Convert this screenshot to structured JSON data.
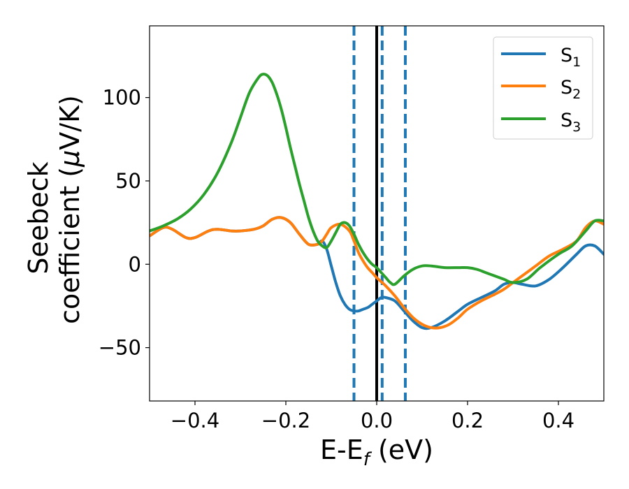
{
  "chart_data": {
    "type": "line",
    "xlabel": {
      "main": "E-E",
      "sub": "f",
      "after": " (eV)"
    },
    "ylabel": {
      "line1": "Seebeck",
      "line2_prefix": "coefficient  (",
      "mu": "μ",
      "line2_suffix": "V/K)"
    },
    "xlim": [
      -0.5,
      0.5
    ],
    "ylim": [
      -82,
      143
    ],
    "xticks": [
      -0.4,
      -0.2,
      0.0,
      0.2,
      0.4
    ],
    "xtick_labels": [
      "−0.4",
      "−0.2",
      "0.0",
      "0.2",
      "0.4"
    ],
    "yticks": [
      -50,
      0,
      50,
      100
    ],
    "ytick_labels": [
      "−50",
      "0",
      "50",
      "100"
    ],
    "grid": false,
    "legend": {
      "position": "top-right"
    },
    "series": [
      {
        "name": "S",
        "sub": "1",
        "color": "#1f77b4",
        "x": [
          -0.5,
          -0.47,
          -0.45,
          -0.42,
          -0.4,
          -0.37,
          -0.35,
          -0.32,
          -0.3,
          -0.27,
          -0.25,
          -0.23,
          -0.21,
          -0.19,
          -0.17,
          -0.15,
          -0.13,
          -0.12,
          -0.11,
          -0.1,
          -0.09,
          -0.08,
          -0.07,
          -0.06,
          -0.05,
          -0.04,
          -0.03,
          -0.02,
          -0.01,
          0.0,
          0.01,
          0.02,
          0.04,
          0.06,
          0.08,
          0.1,
          0.12,
          0.15,
          0.18,
          0.2,
          0.23,
          0.26,
          0.28,
          0.3,
          0.32,
          0.35,
          0.38,
          0.41,
          0.44,
          0.46,
          0.48,
          0.5
        ],
        "y": [
          17,
          22,
          21,
          16,
          16,
          20,
          21,
          20,
          20,
          21,
          23,
          27,
          28,
          25,
          18,
          12,
          12,
          14,
          9,
          -1,
          -11,
          -19,
          -24,
          -27,
          -28,
          -28,
          -27,
          -26,
          -24,
          -22,
          -20,
          -20,
          -22,
          -28,
          -34,
          -38,
          -38,
          -34,
          -28,
          -24,
          -20,
          -16,
          -12,
          -11,
          -12,
          -13,
          -9,
          -2,
          6,
          11,
          11,
          6
        ]
      },
      {
        "name": "S",
        "sub": "2",
        "color": "#ff7f0e",
        "x": [
          -0.5,
          -0.47,
          -0.45,
          -0.42,
          -0.4,
          -0.37,
          -0.35,
          -0.32,
          -0.3,
          -0.27,
          -0.25,
          -0.23,
          -0.21,
          -0.19,
          -0.17,
          -0.15,
          -0.13,
          -0.12,
          -0.11,
          -0.1,
          -0.08,
          -0.06,
          -0.05,
          -0.04,
          -0.03,
          -0.02,
          -0.01,
          0.0,
          0.02,
          0.04,
          0.06,
          0.08,
          0.1,
          0.12,
          0.14,
          0.16,
          0.18,
          0.2,
          0.23,
          0.26,
          0.28,
          0.3,
          0.32,
          0.35,
          0.38,
          0.41,
          0.44,
          0.46,
          0.48,
          0.5
        ],
        "y": [
          17,
          22,
          21,
          16,
          16,
          20,
          21,
          20,
          20,
          21,
          23,
          27,
          28,
          25,
          18,
          12,
          12,
          14,
          18,
          22,
          24,
          20,
          14,
          7,
          2,
          -2,
          -5,
          -8,
          -13,
          -19,
          -26,
          -32,
          -36,
          -38,
          -38,
          -36,
          -32,
          -27,
          -22,
          -18,
          -15,
          -11,
          -7,
          -1,
          5,
          9,
          14,
          22,
          26,
          24
        ]
      },
      {
        "name": "S",
        "sub": "3",
        "color": "#2ca02c",
        "x": [
          -0.5,
          -0.47,
          -0.44,
          -0.41,
          -0.38,
          -0.35,
          -0.32,
          -0.3,
          -0.28,
          -0.26,
          -0.25,
          -0.24,
          -0.23,
          -0.22,
          -0.21,
          -0.2,
          -0.19,
          -0.18,
          -0.17,
          -0.16,
          -0.15,
          -0.14,
          -0.13,
          -0.12,
          -0.11,
          -0.1,
          -0.09,
          -0.08,
          -0.07,
          -0.06,
          -0.05,
          -0.04,
          -0.03,
          -0.02,
          -0.01,
          0.0,
          0.01,
          0.02,
          0.03,
          0.04,
          0.06,
          0.08,
          0.1,
          0.12,
          0.15,
          0.18,
          0.2,
          0.22,
          0.24,
          0.26,
          0.28,
          0.3,
          0.33,
          0.36,
          0.4,
          0.43,
          0.46,
          0.48,
          0.5
        ],
        "y": [
          20,
          23,
          27,
          33,
          42,
          55,
          73,
          88,
          103,
          112,
          114,
          113,
          109,
          102,
          93,
          82,
          70,
          59,
          48,
          38,
          28,
          20,
          14,
          11,
          10,
          14,
          19,
          24,
          25,
          23,
          18,
          12,
          7,
          3,
          0,
          -2,
          -5,
          -8,
          -11,
          -12,
          -7,
          -3,
          -1,
          -1,
          -2,
          -2,
          -2,
          -3,
          -5,
          -7,
          -9,
          -11,
          -9,
          -2,
          6,
          11,
          20,
          26,
          26
        ]
      }
    ],
    "vlines": [
      {
        "x": -0.05,
        "style": "dashed",
        "color": "#1f77b4"
      },
      {
        "x": 0.0,
        "style": "solid",
        "color": "#000000"
      },
      {
        "x": 0.012,
        "style": "dashed",
        "color": "#1f77b4"
      },
      {
        "x": 0.063,
        "style": "dashed",
        "color": "#1f77b4"
      }
    ]
  }
}
